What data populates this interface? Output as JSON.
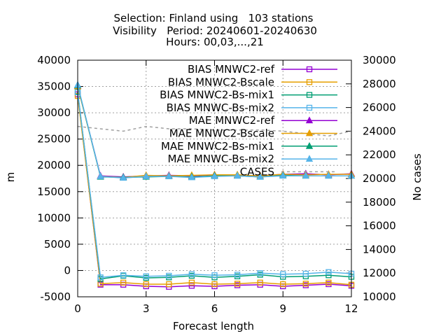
{
  "chart_data": {
    "type": "line",
    "title_lines": [
      "Selection: Finland using   103 stations",
      "Visibility   Period: 20240601-20240630",
      "Hours: 00,03,...,21"
    ],
    "xlabel": "Forecast length",
    "ylabel": "m",
    "y2label": "No cases",
    "x": [
      0,
      1,
      2,
      3,
      4,
      5,
      6,
      7,
      8,
      9,
      10,
      11,
      12
    ],
    "xlim": [
      0,
      12
    ],
    "xticks": [
      0,
      3,
      6,
      9,
      12
    ],
    "ylim": [
      -5000,
      40000
    ],
    "yticks": [
      -5000,
      0,
      5000,
      10000,
      15000,
      20000,
      25000,
      30000,
      35000,
      40000
    ],
    "y2lim": [
      10000,
      30000
    ],
    "y2ticks": [
      10000,
      12000,
      14000,
      16000,
      18000,
      20000,
      22000,
      24000,
      26000,
      28000,
      30000
    ],
    "grid": true,
    "legend_position": "top-right",
    "series": [
      {
        "name": "BIAS MNWC2-ref",
        "marker": "open-square",
        "color": "#9400d3",
        "axis": "y1",
        "values": [
          33500,
          -2700,
          -2700,
          -3000,
          -3100,
          -2900,
          -3000,
          -2800,
          -2700,
          -3000,
          -2800,
          -2600,
          -2900
        ]
      },
      {
        "name": "BIAS MNWC2-Bscale",
        "marker": "open-square",
        "color": "#e69f00",
        "axis": "y1",
        "values": [
          33200,
          -2500,
          -2300,
          -2600,
          -2600,
          -2300,
          -2600,
          -2500,
          -2300,
          -2600,
          -2500,
          -2300,
          -2700
        ]
      },
      {
        "name": "BIAS MNWC2-Bs-mix1",
        "marker": "open-square",
        "color": "#009e73",
        "axis": "y1",
        "values": [
          34000,
          -1600,
          -1000,
          -1400,
          -1300,
          -1000,
          -1300,
          -1100,
          -800,
          -1200,
          -1100,
          -900,
          -1200
        ]
      },
      {
        "name": "BIAS MNWC-Bs-mix2",
        "marker": "open-square",
        "color": "#56b4e9",
        "axis": "y1",
        "values": [
          33900,
          -1300,
          -900,
          -1100,
          -1000,
          -700,
          -900,
          -800,
          -500,
          -700,
          -600,
          -300,
          -600
        ]
      },
      {
        "name": "MAE MNWC2-ref",
        "marker": "filled-triangle",
        "color": "#9400d3",
        "axis": "y1",
        "values": [
          35100,
          18000,
          17800,
          18000,
          18100,
          18000,
          18200,
          18100,
          18000,
          18300,
          18400,
          18200,
          18400
        ]
      },
      {
        "name": "MAE MNWC2-Bscale",
        "marker": "filled-triangle",
        "color": "#e69f00",
        "axis": "y1",
        "values": [
          35000,
          17900,
          17700,
          18100,
          18000,
          18100,
          18200,
          18200,
          18000,
          18300,
          18200,
          18300,
          18300
        ]
      },
      {
        "name": "MAE MNWC2-Bs-mix1",
        "marker": "filled-triangle",
        "color": "#009e73",
        "axis": "y1",
        "values": [
          35200,
          17800,
          17700,
          17800,
          17900,
          17800,
          18000,
          18000,
          17800,
          18100,
          18000,
          18000,
          18000
        ]
      },
      {
        "name": "MAE MNWC-Bs-mix2",
        "marker": "filled-triangle",
        "color": "#56b4e9",
        "axis": "y1",
        "values": [
          35300,
          17900,
          17600,
          17900,
          17900,
          17700,
          17900,
          18000,
          17800,
          18000,
          18000,
          18000,
          18000
        ]
      },
      {
        "name": "CASES",
        "marker": "none",
        "dashed": true,
        "color": "#a0a0a0",
        "axis": "y2",
        "values": [
          24400,
          24200,
          24000,
          24400,
          24200,
          24200,
          24100,
          24100,
          24100,
          24000,
          23800,
          23600,
          24000
        ]
      }
    ]
  }
}
